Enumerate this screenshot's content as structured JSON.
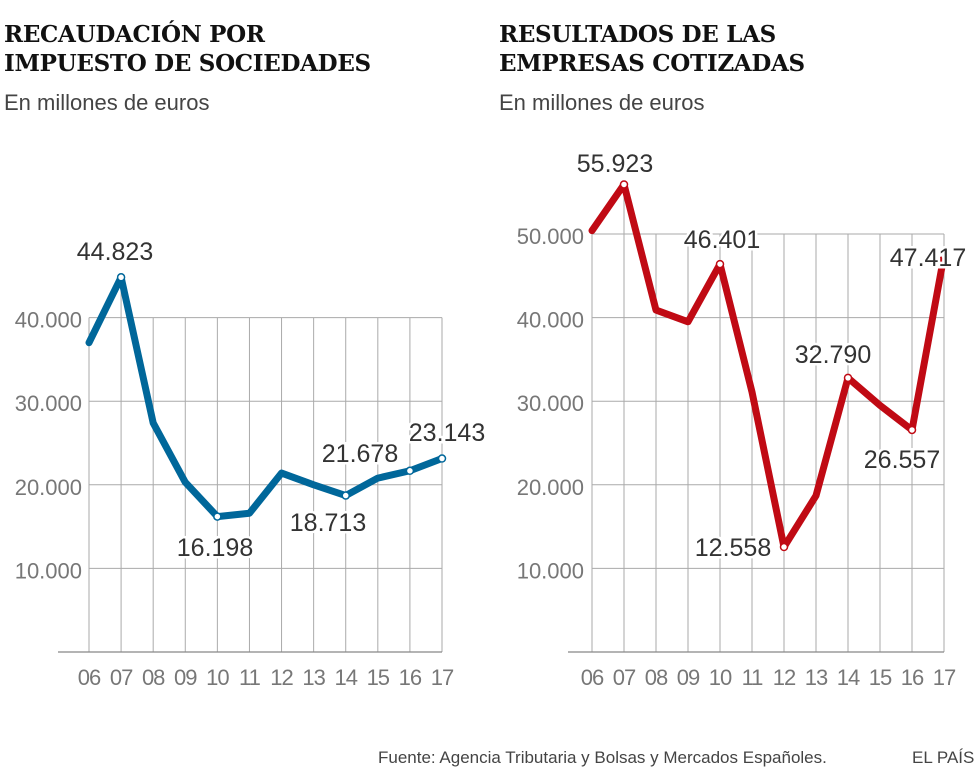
{
  "footer": {
    "source": "Fuente: Agencia Tributaria y Bolsas y Mercados Españoles.",
    "brand": "EL PAÍS"
  },
  "chart_data": [
    {
      "type": "line",
      "title": "RECAUDACIÓN POR IMPUESTO DE SOCIEDADES",
      "subtitle": "En millones de euros",
      "categories": [
        "06",
        "07",
        "08",
        "09",
        "10",
        "11",
        "12",
        "13",
        "14",
        "15",
        "16",
        "17"
      ],
      "values": [
        37000,
        44823,
        27400,
        20300,
        16198,
        16600,
        21400,
        20000,
        18713,
        20800,
        21678,
        23143
      ],
      "labels": {
        "07": "44.823",
        "10": "16.198",
        "14": "18.713",
        "16": "21.678",
        "17": "23.143"
      },
      "yticks": [
        10000,
        20000,
        30000,
        40000
      ],
      "ytick_labels": [
        "10.000",
        "20.000",
        "30.000",
        "40.000"
      ],
      "ylim": [
        0,
        50000
      ],
      "grid": true,
      "color": "#00679a"
    },
    {
      "type": "line",
      "title": "RESULTADOS DE LAS EMPRESAS COTIZADAS",
      "subtitle": "En millones de euros",
      "categories": [
        "06",
        "07",
        "08",
        "09",
        "10",
        "11",
        "12",
        "13",
        "14",
        "15",
        "16",
        "17"
      ],
      "values": [
        50400,
        55923,
        40900,
        39500,
        46401,
        31100,
        12558,
        18700,
        32790,
        29500,
        26557,
        47417
      ],
      "labels": {
        "07": "55.923",
        "10": "46.401",
        "12": "12.558",
        "14": "32.790",
        "16": "26.557",
        "17": "47.417"
      },
      "yticks": [
        10000,
        20000,
        30000,
        40000,
        50000
      ],
      "ytick_labels": [
        "10.000",
        "20.000",
        "30.000",
        "40.000",
        "50.000"
      ],
      "ylim": [
        0,
        60000
      ],
      "grid": true,
      "color": "#c00a14"
    }
  ]
}
